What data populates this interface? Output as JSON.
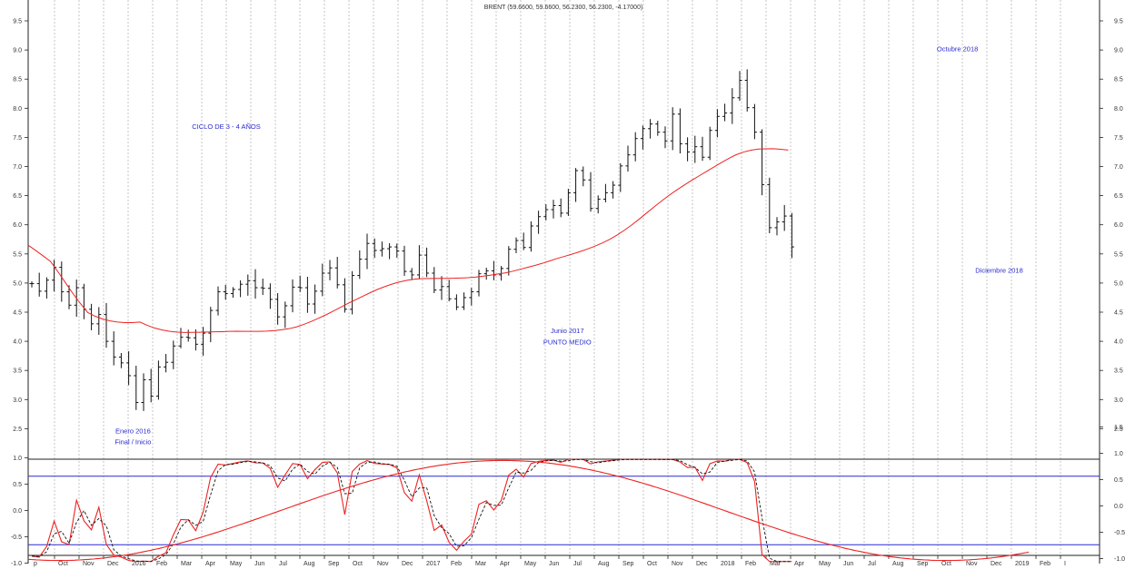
{
  "chart_data": [
    {
      "type": "ohlc",
      "title": "BRENT (59.6600, 59.6600, 56.2300, 56.2300, -4.17000)",
      "y_ticks": [
        "2.5",
        "3.0",
        "3.5",
        "4.0",
        "4.5",
        "5.0",
        "5.5",
        "6.0",
        "6.5",
        "7.0",
        "7.5",
        "8.0",
        "8.5",
        "9.0",
        "9.5"
      ],
      "x_labels": [
        "p",
        "Oct",
        "Nov",
        "Dec",
        "2016",
        "Feb",
        "Mar",
        "Apr",
        "May",
        "Jun",
        "Jul",
        "Aug",
        "Sep",
        "Oct",
        "Nov",
        "Dec",
        "2017",
        "Feb",
        "Mar",
        "Apr",
        "May",
        "Jun",
        "Jul",
        "Aug",
        "Sep",
        "Oct",
        "Nov",
        "Dec",
        "2018",
        "Feb",
        "Mar",
        "Apr",
        "May",
        "Jun",
        "Jul",
        "Aug",
        "Sep",
        "Oct",
        "Nov",
        "Dec",
        "2019",
        "Feb",
        "I"
      ],
      "ylim": [
        20,
        100
      ],
      "annotations": [
        {
          "text": "CICLO DE 3 - 4 AÑOS",
          "x": 8,
          "y": 76.5
        },
        {
          "text": "Enero 2016",
          "x": 4.2,
          "y": 24.2
        },
        {
          "text": "Final / Inicio",
          "x": 4.2,
          "y": 22.3
        },
        {
          "text": "Junio 2017",
          "x": 21.9,
          "y": 41.4
        },
        {
          "text": "PUNTO MEDIO",
          "x": 21.9,
          "y": 39.5
        },
        {
          "text": "Octubre 2018",
          "x": 37.8,
          "y": 89.8
        },
        {
          "text": "Diciembre 2018",
          "x": 39.5,
          "y": 51.8
        }
      ],
      "prices": [
        49.9,
        48.6,
        50.5,
        52.7,
        48.5,
        46.2,
        49.2,
        45.5,
        43.0,
        44.6,
        40.0,
        37.3,
        36.3,
        34.1,
        29.5,
        33.4,
        30.6,
        35.6,
        36.4,
        39.2,
        40.7,
        40.6,
        39.5,
        41.4,
        45.3,
        48.5,
        48.2,
        48.9,
        49.8,
        50.4,
        49.2,
        49.1,
        47.2,
        44.2,
        46.1,
        49.3,
        49.2,
        46.4,
        48.6,
        51.7,
        52.6,
        49.7,
        45.5,
        51.3,
        54.1,
        56.8,
        55.6,
        55.9,
        56.2,
        55.5,
        52.0,
        51.4,
        54.8,
        51.7,
        48.8,
        49.4,
        47.3,
        45.9,
        47.5,
        48.5,
        51.6,
        52.1,
        51.4,
        52.5,
        55.8,
        57.3,
        56.1,
        59.8,
        61.4,
        62.6,
        63.3,
        62.0,
        65.5,
        69.3,
        67.7,
        62.8,
        64.4,
        65.5,
        66.8,
        70.1,
        72.0,
        74.8,
        76.5,
        77.3,
        75.9,
        74.4,
        79.0,
        73.9,
        72.5,
        73.4,
        71.6,
        76.2,
        78.6,
        79.2,
        81.8,
        84.8,
        80.1,
        75.9,
        66.9,
        59.5,
        60.5,
        61.5,
        56.2
      ],
      "series": [
        {
          "name": "",
          "color": "#ee2222"
        },
        {
          "name": "",
          "color": "#ee2222"
        }
      ]
    },
    {
      "type": "line",
      "y_ticks_left": [
        "-1.0",
        "-0.5",
        "0.0",
        "0.5",
        "1.0"
      ],
      "y_ticks_right": [
        "-1.0",
        "-0.5",
        "0.0",
        "0.5",
        "1.0",
        "1.5"
      ],
      "ylim": [
        -1.3,
        1.3
      ],
      "levels": [
        0.65,
        -0.65
      ],
      "series": [
        {
          "name": "",
          "color": "#ee2222"
        },
        {
          "name": "",
          "color": "#111111",
          "style": "dashed"
        },
        {
          "name": "",
          "color": "#ee2222"
        }
      ]
    }
  ]
}
